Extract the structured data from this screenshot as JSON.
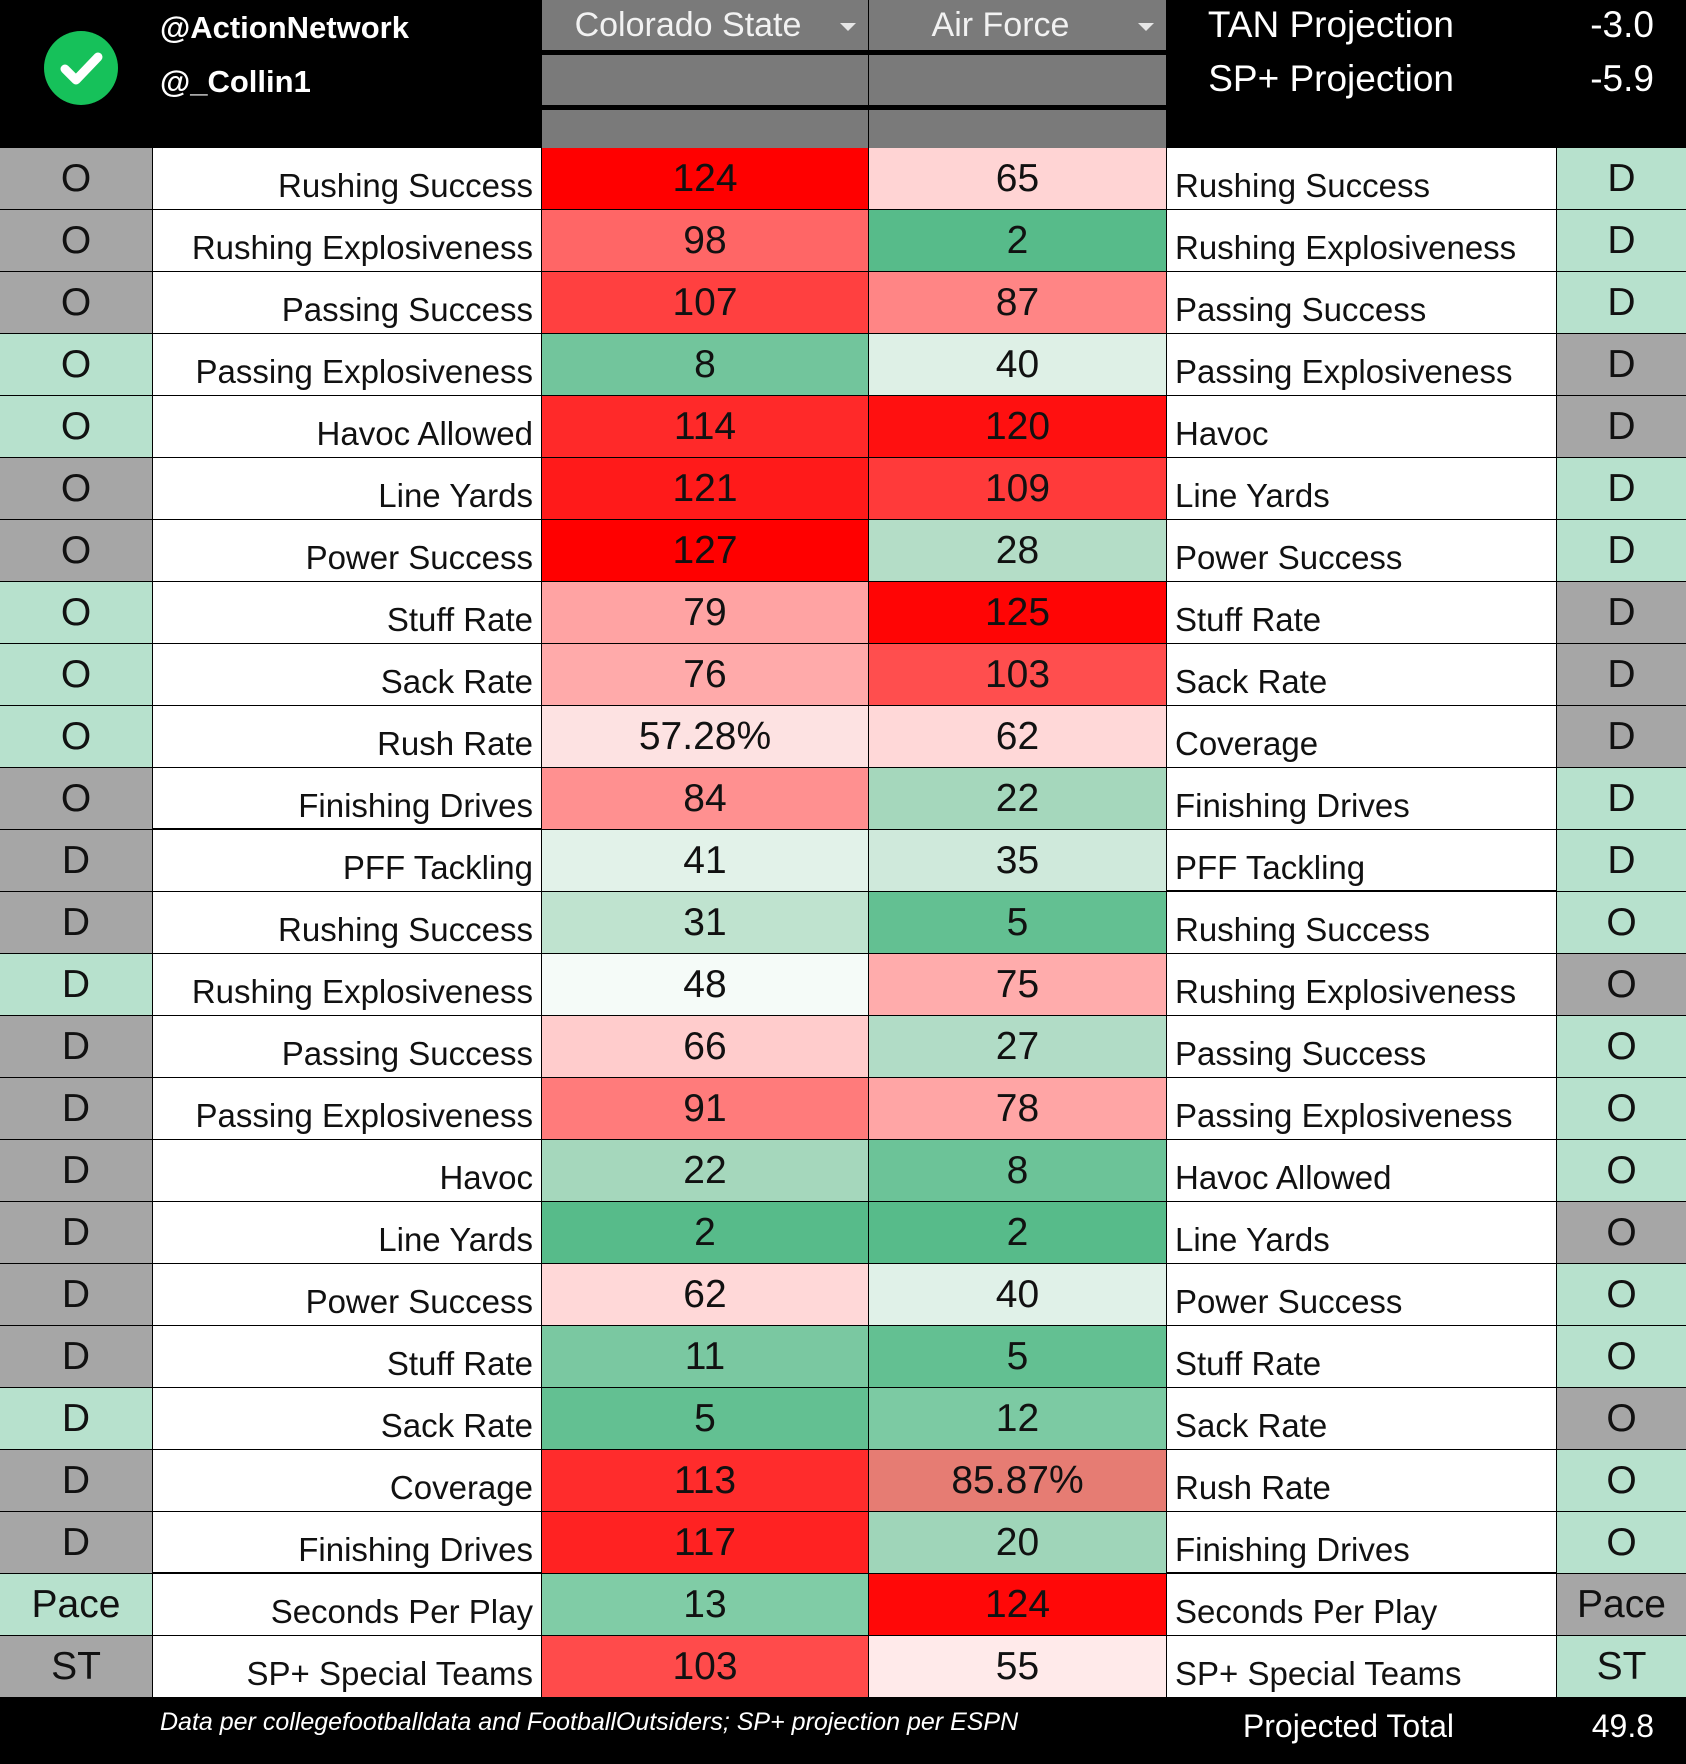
{
  "header": {
    "handle_1": "@ActionNetwork",
    "handle_2": "@_Collin1",
    "check_icon": "check-circle-icon",
    "team_1": "Colorado State",
    "team_2": "Air Force",
    "projections": [
      {
        "label": "TAN Projection",
        "value": "-3.0"
      },
      {
        "label": "SP+ Projection",
        "value": "-5.9"
      }
    ]
  },
  "colors": {
    "side_gray": "#a6a6a6",
    "side_green": "#b7e1cd",
    "header_gray": "#7a7a7a"
  },
  "rows": [
    {
      "lu": "O",
      "ll": "Rushing Success",
      "a": "124",
      "b": "65",
      "rl": "Rushing Success",
      "ru": "D",
      "lc": "#a6a6a6",
      "rc": "#b7e1cd",
      "ac": "#ff0000",
      "bc": "#ffd4d4"
    },
    {
      "lu": "O",
      "ll": "Rushing Explosiveness",
      "a": "98",
      "b": "2",
      "rl": "Rushing Explosiveness",
      "ru": "D",
      "lc": "#a6a6a6",
      "rc": "#b7e1cd",
      "ac": "#ff6666",
      "bc": "#57bb8a"
    },
    {
      "lu": "O",
      "ll": "Passing Success",
      "a": "107",
      "b": "87",
      "rl": "Passing Success",
      "ru": "D",
      "lc": "#a6a6a6",
      "rc": "#b7e1cd",
      "ac": "#ff4040",
      "bc": "#ff8585"
    },
    {
      "lu": "O",
      "ll": "Passing Explosiveness",
      "a": "8",
      "b": "40",
      "rl": "Passing Explosiveness",
      "ru": "D",
      "lc": "#b7e1cd",
      "rc": "#a6a6a6",
      "ac": "#72c59c",
      "bc": "#def0e6"
    },
    {
      "lu": "O",
      "ll": "Havoc Allowed",
      "a": "114",
      "b": "120",
      "rl": "Havoc",
      "ru": "D",
      "lc": "#b7e1cd",
      "rc": "#a6a6a6",
      "ac": "#ff2929",
      "bc": "#ff1010"
    },
    {
      "lu": "O",
      "ll": "Line Yards",
      "a": "121",
      "b": "109",
      "rl": "Line Yards",
      "ru": "D",
      "lc": "#a6a6a6",
      "rc": "#b7e1cd",
      "ac": "#ff1a1a",
      "bc": "#ff3a3a"
    },
    {
      "lu": "O",
      "ll": "Power Success",
      "a": "127",
      "b": "28",
      "rl": "Power Success",
      "ru": "D",
      "lc": "#a6a6a6",
      "rc": "#b7e1cd",
      "ac": "#ff0000",
      "bc": "#b4ddc7"
    },
    {
      "lu": "O",
      "ll": "Stuff Rate",
      "a": "79",
      "b": "125",
      "rl": "Stuff Rate",
      "ru": "D",
      "lc": "#b7e1cd",
      "rc": "#a6a6a6",
      "ac": "#ffa3a3",
      "bc": "#ff0505"
    },
    {
      "lu": "O",
      "ll": "Sack Rate",
      "a": "76",
      "b": "103",
      "rl": "Sack Rate",
      "ru": "D",
      "lc": "#b7e1cd",
      "rc": "#a6a6a6",
      "ac": "#ffaaaa",
      "bc": "#ff4e4e"
    },
    {
      "lu": "O",
      "ll": "Rush Rate",
      "a": "57.28%",
      "b": "62",
      "rl": "Coverage",
      "ru": "D",
      "lc": "#b7e1cd",
      "rc": "#a6a6a6",
      "ac": "#fde2e2",
      "bc": "#ffd8d8"
    },
    {
      "lu": "O",
      "ll": "Finishing Drives",
      "a": "84",
      "b": "22",
      "rl": "Finishing Drives",
      "ru": "D",
      "lc": "#a6a6a6",
      "rc": "#b7e1cd",
      "ac": "#ff9090",
      "bc": "#a5d7bc"
    },
    {
      "lu": "D",
      "ll": "PFF Tackling",
      "a": "41",
      "b": "35",
      "rl": "PFF Tackling",
      "ru": "D",
      "lc": "#a6a6a6",
      "rc": "#b7e1cd",
      "ac": "#e2f2e9",
      "bc": "#cfe9db"
    },
    {
      "lu": "D",
      "ll": "Rushing Success",
      "a": "31",
      "b": "5",
      "rl": "Rushing Success",
      "ru": "O",
      "lc": "#a6a6a6",
      "rc": "#b7e1cd",
      "ac": "#bfe3cf",
      "bc": "#63c092"
    },
    {
      "lu": "D",
      "ll": "Rushing Explosiveness",
      "a": "48",
      "b": "75",
      "rl": "Rushing Explosiveness",
      "ru": "O",
      "lc": "#b7e1cd",
      "rc": "#a6a6a6",
      "ac": "#f5fbf8",
      "bc": "#ffacac"
    },
    {
      "lu": "D",
      "ll": "Passing Success",
      "a": "66",
      "b": "27",
      "rl": "Passing Success",
      "ru": "O",
      "lc": "#a6a6a6",
      "rc": "#b7e1cd",
      "ac": "#ffcccc",
      "bc": "#b1dcc6"
    },
    {
      "lu": "D",
      "ll": "Passing Explosiveness",
      "a": "91",
      "b": "78",
      "rl": "Passing Explosiveness",
      "ru": "O",
      "lc": "#a6a6a6",
      "rc": "#b7e1cd",
      "ac": "#ff7b7b",
      "bc": "#ffa5a5"
    },
    {
      "lu": "D",
      "ll": "Havoc",
      "a": "22",
      "b": "8",
      "rl": "Havoc Allowed",
      "ru": "O",
      "lc": "#a6a6a6",
      "rc": "#b7e1cd",
      "ac": "#a5d7bc",
      "bc": "#6cc398"
    },
    {
      "lu": "D",
      "ll": "Line Yards",
      "a": "2",
      "b": "2",
      "rl": "Line Yards",
      "ru": "O",
      "lc": "#a6a6a6",
      "rc": "#a6a6a6",
      "ac": "#57bb8a",
      "bc": "#57bb8a"
    },
    {
      "lu": "D",
      "ll": "Power Success",
      "a": "62",
      "b": "40",
      "rl": "Power Success",
      "ru": "O",
      "lc": "#a6a6a6",
      "rc": "#b7e1cd",
      "ac": "#ffd8d8",
      "bc": "#e0f1e8"
    },
    {
      "lu": "D",
      "ll": "Stuff Rate",
      "a": "11",
      "b": "5",
      "rl": "Stuff Rate",
      "ru": "O",
      "lc": "#a6a6a6",
      "rc": "#b7e1cd",
      "ac": "#7ac8a1",
      "bc": "#63c092"
    },
    {
      "lu": "D",
      "ll": "Sack Rate",
      "a": "5",
      "b": "12",
      "rl": "Sack Rate",
      "ru": "O",
      "lc": "#b7e1cd",
      "rc": "#a6a6a6",
      "ac": "#63c092",
      "bc": "#7ccaa3"
    },
    {
      "lu": "D",
      "ll": "Coverage",
      "a": "113",
      "b": "85.87%",
      "rl": "Rush Rate",
      "ru": "O",
      "lc": "#a6a6a6",
      "rc": "#b7e1cd",
      "ac": "#ff2c2c",
      "bc": "#e67c73"
    },
    {
      "lu": "D",
      "ll": "Finishing Drives",
      "a": "117",
      "b": "20",
      "rl": "Finishing Drives",
      "ru": "O",
      "lc": "#a6a6a6",
      "rc": "#b7e1cd",
      "ac": "#ff2222",
      "bc": "#9fd5b9"
    },
    {
      "lu": "Pace",
      "ll": "Seconds Per Play",
      "a": "13",
      "b": "124",
      "rl": "Seconds Per Play",
      "ru": "Pace",
      "lc": "#b7e1cd",
      "rc": "#a6a6a6",
      "ac": "#80cca6",
      "bc": "#ff0808"
    },
    {
      "lu": "ST",
      "ll": "SP+ Special Teams",
      "a": "103",
      "b": "55",
      "rl": "SP+ Special Teams",
      "ru": "ST",
      "lc": "#a6a6a6",
      "rc": "#b7e1cd",
      "ac": "#ff4b4b",
      "bc": "#ffeaea"
    }
  ],
  "footer": {
    "footnote": "Data per collegefootballdata and FootballOutsiders; SP+ projection per ESPN",
    "total_label": "Projected Total",
    "total_value": "49.8"
  }
}
